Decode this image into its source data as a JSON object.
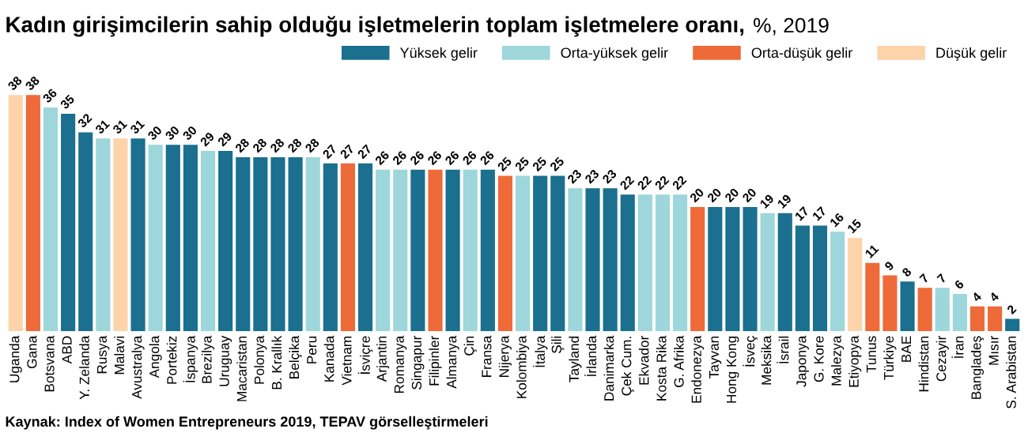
{
  "chart_data": {
    "type": "bar",
    "title": "Kadın girişimcilerin sahip olduğu işletmelerin toplam işletmelere oranı,",
    "subtitle": "%, 2019",
    "categories": [
      "Uganda",
      "Gana",
      "Botsvana",
      "ABD",
      "Y. Zelanda",
      "Rusya",
      "Malavi",
      "Avustralya",
      "Angola",
      "Portekiz",
      "İspanya",
      "Brezilya",
      "Uruguay",
      "Macaristan",
      "Polonya",
      "B. Krallık",
      "Belçika",
      "Peru",
      "Kanada",
      "Vietnam",
      "İsviçre",
      "Arjantin",
      "Romanya",
      "Singapur",
      "Filipinler",
      "Almanya",
      "Çin",
      "Fransa",
      "Nijerya",
      "Kolombiya",
      "İtalya",
      "Şili",
      "Tayland",
      "İrlanda",
      "Danimarka",
      "Çek Cum.",
      "Ekvador",
      "Kosta Rika",
      "G. Afrika",
      "Endonezya",
      "Tayvan",
      "Hong Kong",
      "İsveç",
      "Meksika",
      "İsrail",
      "Japonya",
      "G. Kore",
      "Malezya",
      "Etiyopya",
      "Tunus",
      "Türkiye",
      "BAE",
      "Hindistan",
      "Cezayir",
      "İran",
      "Bangladeş",
      "Mısır",
      "S. Arabistan"
    ],
    "series": [
      {
        "name": "Yüksek gelir",
        "color": "#1b6f8f",
        "values": [
          null,
          null,
          null,
          35,
          32,
          null,
          null,
          31,
          null,
          30,
          30,
          null,
          29,
          28,
          28,
          28,
          28,
          null,
          27,
          null,
          27,
          null,
          null,
          26,
          null,
          26,
          null,
          26,
          null,
          null,
          25,
          25,
          null,
          23,
          23,
          22,
          null,
          null,
          null,
          null,
          20,
          20,
          20,
          null,
          19,
          17,
          17,
          null,
          null,
          null,
          null,
          8,
          null,
          null,
          null,
          null,
          null,
          2
        ]
      },
      {
        "name": "Orta-yüksek gelir",
        "color": "#9dd6db",
        "values": [
          null,
          null,
          36,
          null,
          null,
          31,
          null,
          null,
          30,
          null,
          null,
          29,
          null,
          null,
          null,
          null,
          null,
          28,
          null,
          null,
          null,
          26,
          26,
          null,
          null,
          null,
          26,
          null,
          null,
          25,
          null,
          null,
          23,
          null,
          null,
          null,
          22,
          22,
          22,
          null,
          null,
          null,
          null,
          19,
          null,
          null,
          null,
          16,
          null,
          null,
          null,
          null,
          null,
          7,
          6,
          null,
          null,
          null
        ]
      },
      {
        "name": "Orta-düşük gelir",
        "color": "#ee6a39",
        "values": [
          null,
          38,
          null,
          null,
          null,
          null,
          null,
          null,
          null,
          null,
          null,
          null,
          null,
          null,
          null,
          null,
          null,
          null,
          null,
          27,
          null,
          null,
          null,
          null,
          26,
          null,
          null,
          null,
          25,
          null,
          null,
          null,
          null,
          null,
          null,
          null,
          null,
          null,
          null,
          20,
          null,
          null,
          null,
          null,
          null,
          null,
          null,
          null,
          null,
          11,
          9,
          null,
          7,
          null,
          null,
          4,
          4,
          null
        ]
      },
      {
        "name": "Düşük gelir",
        "color": "#fdd3aa",
        "values": [
          38,
          null,
          null,
          null,
          null,
          null,
          31,
          null,
          null,
          null,
          null,
          null,
          null,
          null,
          null,
          null,
          null,
          null,
          null,
          null,
          null,
          null,
          null,
          null,
          null,
          null,
          null,
          null,
          null,
          null,
          null,
          null,
          null,
          null,
          null,
          null,
          null,
          null,
          null,
          null,
          null,
          null,
          null,
          null,
          null,
          null,
          null,
          null,
          15,
          null,
          null,
          null,
          null,
          null,
          null,
          null,
          null,
          null
        ]
      }
    ],
    "data_labels": true,
    "legend": "top right",
    "grid": false,
    "annotations": [
      "Kaynak: Index of Women Entrepreneurs 2019, TEPAV görselleştirmeleri"
    ]
  }
}
